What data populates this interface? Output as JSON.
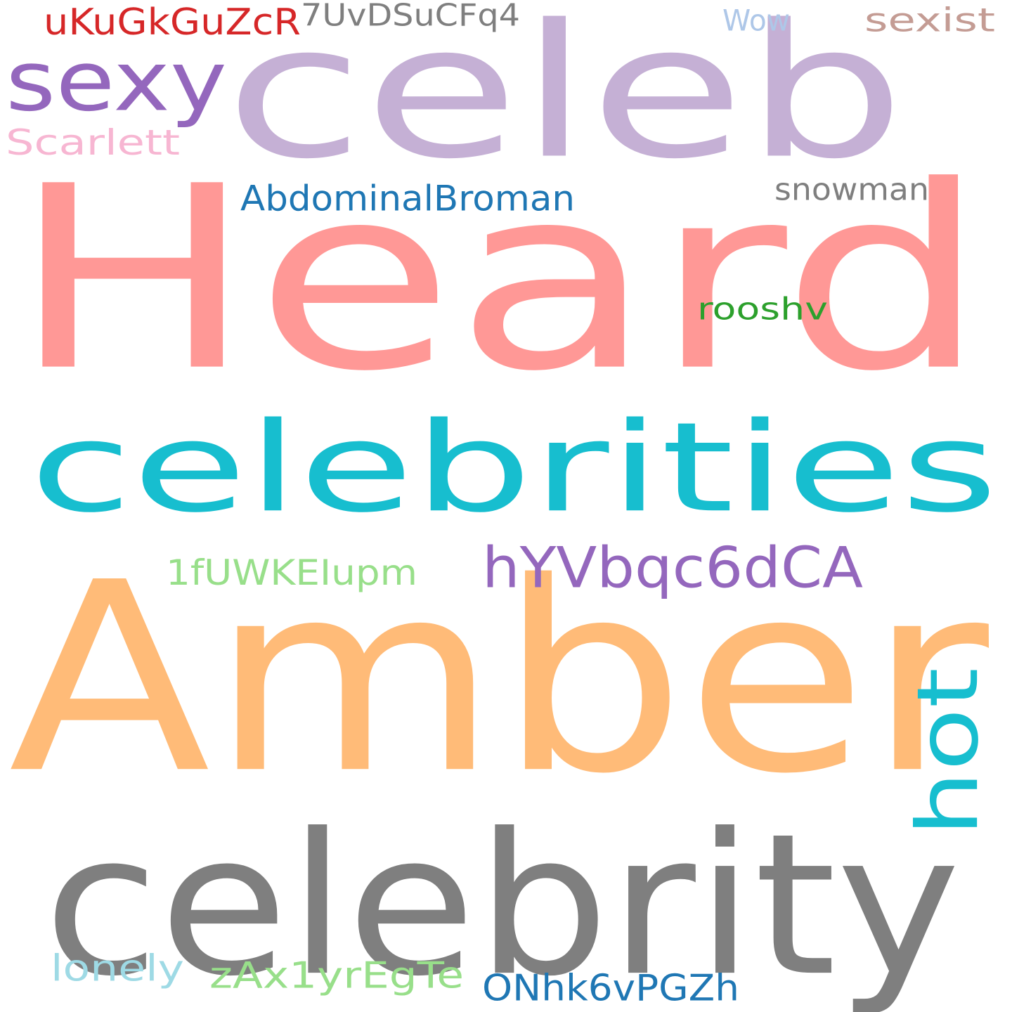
{
  "words": [
    {
      "id": "heard",
      "text": "Heard",
      "color": "#ff9896"
    },
    {
      "id": "amber",
      "text": "Amber",
      "color": "#ffbb78"
    },
    {
      "id": "celeb",
      "text": "celeb",
      "color": "#c5b0d5"
    },
    {
      "id": "celebrities",
      "text": "celebrities",
      "color": "#17becf"
    },
    {
      "id": "celebrity",
      "text": "celebrity",
      "color": "#7f7f7f"
    },
    {
      "id": "sexy",
      "text": "sexy",
      "color": "#9467bd"
    },
    {
      "id": "hot",
      "text": "hot",
      "color": "#17becf"
    },
    {
      "id": "hYVbqc6dCA",
      "text": "hYVbqc6dCA",
      "color": "#9467bd"
    },
    {
      "id": "uKuGkGuZcR",
      "text": "uKuGkGuZcR",
      "color": "#d62728"
    },
    {
      "id": "7UvDSuCFq4",
      "text": "7UvDSuCFq4",
      "color": "#7f7f7f"
    },
    {
      "id": "wow",
      "text": "Wow",
      "color": "#aec7e8"
    },
    {
      "id": "sexist",
      "text": "sexist",
      "color": "#c49c94"
    },
    {
      "id": "scarlett",
      "text": "Scarlett",
      "color": "#f7b6d2"
    },
    {
      "id": "abdominalbroman",
      "text": "AbdominalBroman",
      "color": "#1f77b4"
    },
    {
      "id": "snowman",
      "text": "snowman",
      "color": "#7f7f7f"
    },
    {
      "id": "rooshv",
      "text": "rooshv",
      "color": "#2ca02c"
    },
    {
      "id": "1fUWKEIupm",
      "text": "1fUWKEIupm",
      "color": "#98df8a"
    },
    {
      "id": "lonely",
      "text": "lonely",
      "color": "#9edae5"
    },
    {
      "id": "zAx1yrEgTe",
      "text": "zAx1yrEgTe",
      "color": "#98df8a"
    },
    {
      "id": "ONhk6vPGZh",
      "text": "ONhk6vPGZh",
      "color": "#1f77b4"
    }
  ]
}
